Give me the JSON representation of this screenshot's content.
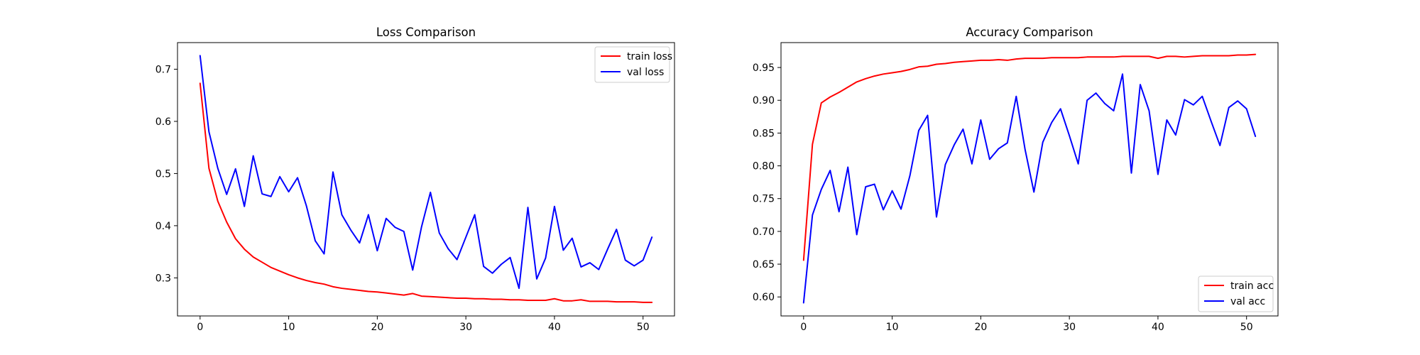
{
  "chart_data": [
    {
      "type": "line",
      "title": "Loss Comparison",
      "xlabel": "",
      "ylabel": "",
      "xlim": [
        -2.55,
        53.55
      ],
      "ylim": [
        0.227,
        0.751
      ],
      "xticks": [
        0,
        10,
        20,
        30,
        40,
        50
      ],
      "yticks": [
        0.3,
        0.4,
        0.5,
        0.6,
        0.7
      ],
      "xtick_labels": [
        "0",
        "10",
        "20",
        "30",
        "40",
        "50"
      ],
      "ytick_labels": [
        "0.3",
        "0.4",
        "0.5",
        "0.6",
        "0.7"
      ],
      "legend_position": "top-right",
      "grid": false,
      "x": [
        0,
        1,
        2,
        3,
        4,
        5,
        6,
        7,
        8,
        9,
        10,
        11,
        12,
        13,
        14,
        15,
        16,
        17,
        18,
        19,
        20,
        21,
        22,
        23,
        24,
        25,
        26,
        27,
        28,
        29,
        30,
        31,
        32,
        33,
        34,
        35,
        36,
        37,
        38,
        39,
        40,
        41,
        42,
        43,
        44,
        45,
        46,
        47,
        48,
        49,
        50,
        51
      ],
      "series": [
        {
          "name": "train loss",
          "color": "#ff0000",
          "values": [
            0.673,
            0.51,
            0.447,
            0.407,
            0.375,
            0.355,
            0.34,
            0.33,
            0.32,
            0.313,
            0.306,
            0.3,
            0.295,
            0.291,
            0.288,
            0.283,
            0.28,
            0.278,
            0.276,
            0.274,
            0.273,
            0.271,
            0.269,
            0.267,
            0.27,
            0.265,
            0.264,
            0.263,
            0.262,
            0.261,
            0.261,
            0.26,
            0.26,
            0.259,
            0.259,
            0.258,
            0.258,
            0.257,
            0.257,
            0.257,
            0.26,
            0.256,
            0.256,
            0.258,
            0.255,
            0.255,
            0.255,
            0.254,
            0.254,
            0.254,
            0.253,
            0.253
          ]
        },
        {
          "name": "val loss",
          "color": "#0000ff",
          "values": [
            0.726,
            0.58,
            0.51,
            0.46,
            0.509,
            0.437,
            0.534,
            0.461,
            0.456,
            0.494,
            0.465,
            0.492,
            0.438,
            0.371,
            0.346,
            0.503,
            0.421,
            0.392,
            0.367,
            0.421,
            0.352,
            0.414,
            0.397,
            0.389,
            0.315,
            0.398,
            0.464,
            0.386,
            0.356,
            0.335,
            0.378,
            0.421,
            0.322,
            0.309,
            0.326,
            0.339,
            0.28,
            0.435,
            0.298,
            0.338,
            0.437,
            0.353,
            0.376,
            0.321,
            0.329,
            0.316,
            0.355,
            0.393,
            0.334,
            0.323,
            0.334,
            0.378
          ]
        }
      ]
    },
    {
      "type": "line",
      "title": "Accuracy Comparison",
      "xlabel": "",
      "ylabel": "",
      "xlim": [
        -2.55,
        53.55
      ],
      "ylim": [
        0.571,
        0.988
      ],
      "xticks": [
        0,
        10,
        20,
        30,
        40,
        50
      ],
      "yticks": [
        0.6,
        0.65,
        0.7,
        0.75,
        0.8,
        0.85,
        0.9,
        0.95
      ],
      "xtick_labels": [
        "0",
        "10",
        "20",
        "30",
        "40",
        "50"
      ],
      "ytick_labels": [
        "0.60",
        "0.65",
        "0.70",
        "0.75",
        "0.80",
        "0.85",
        "0.90",
        "0.95"
      ],
      "legend_position": "bottom-right",
      "grid": false,
      "x": [
        0,
        1,
        2,
        3,
        4,
        5,
        6,
        7,
        8,
        9,
        10,
        11,
        12,
        13,
        14,
        15,
        16,
        17,
        18,
        19,
        20,
        21,
        22,
        23,
        24,
        25,
        26,
        27,
        28,
        29,
        30,
        31,
        32,
        33,
        34,
        35,
        36,
        37,
        38,
        39,
        40,
        41,
        42,
        43,
        44,
        45,
        46,
        47,
        48,
        49,
        50,
        51
      ],
      "series": [
        {
          "name": "train acc",
          "color": "#ff0000",
          "values": [
            0.656,
            0.833,
            0.896,
            0.905,
            0.912,
            0.92,
            0.928,
            0.933,
            0.937,
            0.94,
            0.942,
            0.944,
            0.947,
            0.951,
            0.952,
            0.955,
            0.956,
            0.958,
            0.959,
            0.96,
            0.961,
            0.961,
            0.962,
            0.961,
            0.963,
            0.964,
            0.964,
            0.964,
            0.965,
            0.965,
            0.965,
            0.965,
            0.966,
            0.966,
            0.966,
            0.966,
            0.967,
            0.967,
            0.967,
            0.967,
            0.964,
            0.967,
            0.967,
            0.966,
            0.967,
            0.968,
            0.968,
            0.968,
            0.968,
            0.969,
            0.969,
            0.97
          ]
        },
        {
          "name": "val acc",
          "color": "#0000ff",
          "values": [
            0.591,
            0.725,
            0.764,
            0.793,
            0.73,
            0.798,
            0.695,
            0.768,
            0.772,
            0.733,
            0.762,
            0.734,
            0.785,
            0.854,
            0.877,
            0.722,
            0.802,
            0.832,
            0.856,
            0.803,
            0.87,
            0.81,
            0.826,
            0.835,
            0.906,
            0.825,
            0.76,
            0.836,
            0.866,
            0.887,
            0.846,
            0.803,
            0.9,
            0.911,
            0.895,
            0.884,
            0.94,
            0.789,
            0.924,
            0.884,
            0.787,
            0.87,
            0.847,
            0.901,
            0.893,
            0.906,
            0.868,
            0.831,
            0.889,
            0.899,
            0.887,
            0.845
          ]
        }
      ]
    }
  ]
}
